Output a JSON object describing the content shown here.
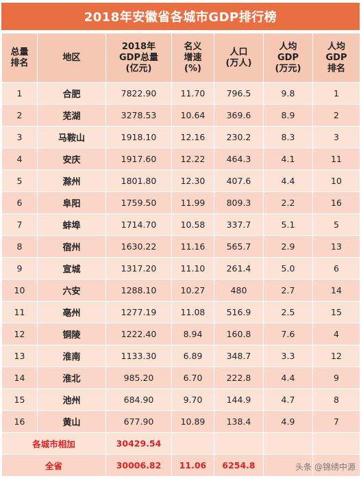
{
  "title": "2018年安徽省各城市GDP排行榜",
  "headers": [
    "总量\n排名",
    "地区",
    "2018年\nGDP总量\n(亿元)",
    "名义\n增速\n(%)",
    "人口\n(万人)",
    "人均\nGDP\n(万元)",
    "人均\nGDP\n排名"
  ],
  "rows": [
    [
      "1",
      "合肥",
      "7822.90",
      "11.70",
      "796.5",
      "9.8",
      "1"
    ],
    [
      "2",
      "芜湖",
      "3278.53",
      "10.64",
      "369.6",
      "8.9",
      "2"
    ],
    [
      "3",
      "马鞍山",
      "1918.10",
      "12.16",
      "230.2",
      "8.3",
      "3"
    ],
    [
      "4",
      "安庆",
      "1917.60",
      "12.22",
      "464.3",
      "4.1",
      "11"
    ],
    [
      "5",
      "滁州",
      "1801.80",
      "12.30",
      "407.6",
      "4.4",
      "10"
    ],
    [
      "6",
      "阜阳",
      "1759.50",
      "11.99",
      "809.3",
      "2.2",
      "16"
    ],
    [
      "7",
      "蚌埠",
      "1714.70",
      "10.58",
      "337.7",
      "5.1",
      "5"
    ],
    [
      "8",
      "宿州",
      "1630.22",
      "11.16",
      "565.7",
      "2.9",
      "13"
    ],
    [
      "9",
      "宣城",
      "1317.20",
      "11.10",
      "261.4",
      "5.0",
      "6"
    ],
    [
      "10",
      "六安",
      "1288.10",
      "10.27",
      "480",
      "2.7",
      "14"
    ],
    [
      "11",
      "亳州",
      "1277.19",
      "11.08",
      "516.9",
      "2.5",
      "15"
    ],
    [
      "12",
      "铜陵",
      "1222.40",
      "8.94",
      "160.8",
      "7.6",
      "4"
    ],
    [
      "13",
      "淮南",
      "1133.30",
      "6.89",
      "348.7",
      "3.3",
      "12"
    ],
    [
      "14",
      "淮北",
      "985.20",
      "6.70",
      "222.8",
      "4.4",
      "9"
    ],
    [
      "15",
      "池州",
      "684.90",
      "9.70",
      "144.9",
      "4.7",
      "8"
    ],
    [
      "16",
      "黄山",
      "677.90",
      "10.89",
      "138.4",
      "4.9",
      "7"
    ]
  ],
  "sum_row": {
    "label": "各城市相加",
    "gdp": "30429.54"
  },
  "total_row": {
    "label": "全省",
    "gdp": "30006.82",
    "growth": "11.06",
    "population": "6254.8"
  },
  "watermark": {
    "text": "头条 @锦绣中源"
  },
  "colors": {
    "title_bg": "#e96f43",
    "header_bg": "#f4c8b3",
    "row_light": "#fbe3d8",
    "row_dark": "#f9d6c7",
    "highlight": "#e02020"
  }
}
